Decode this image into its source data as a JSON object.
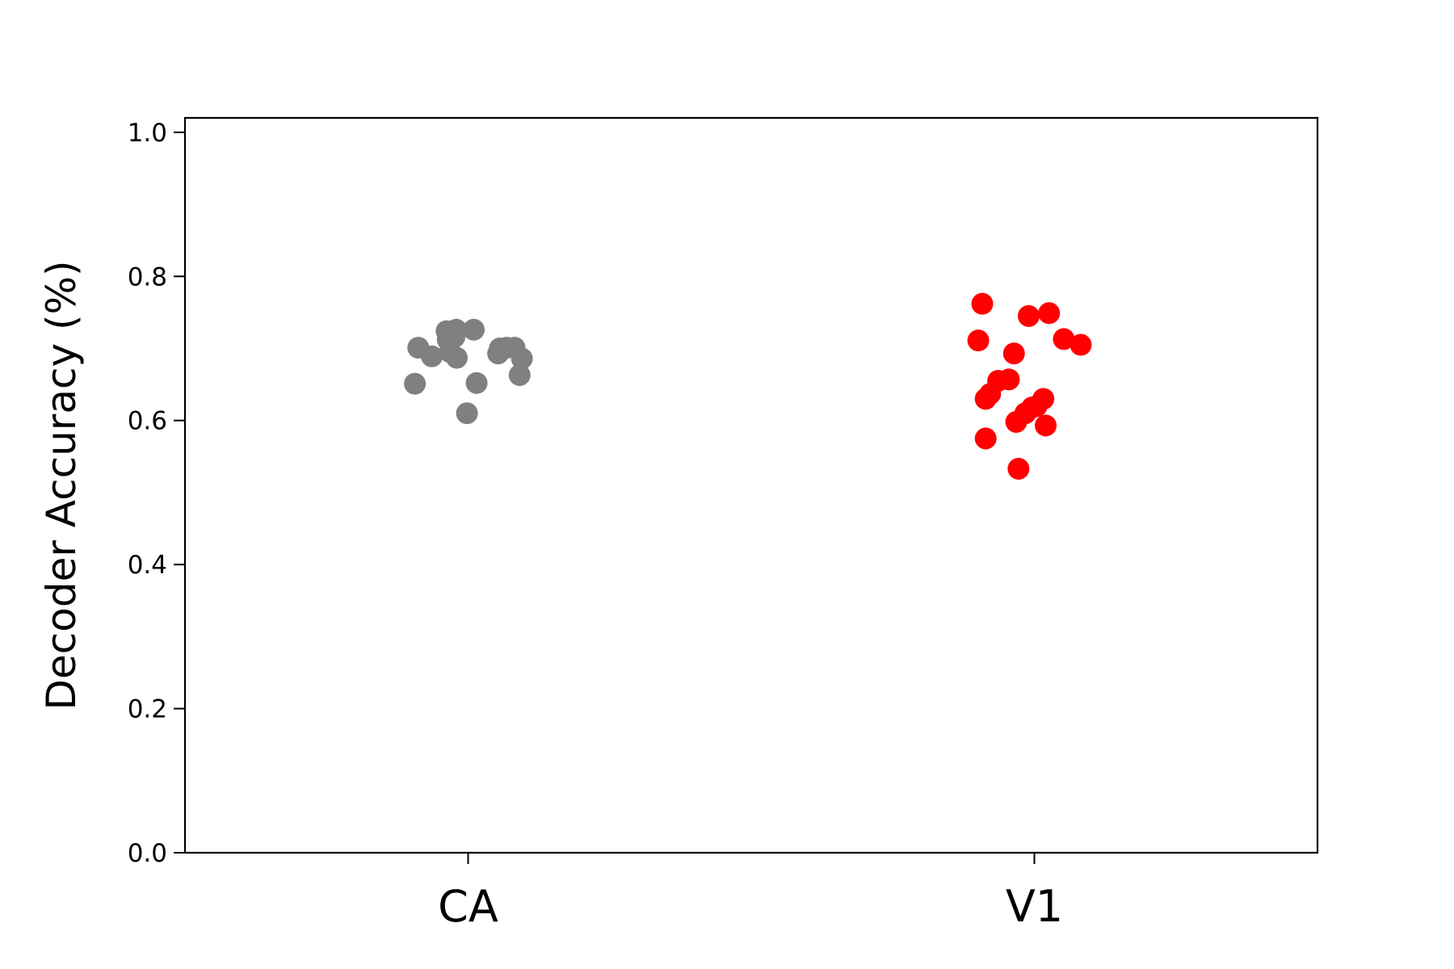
{
  "chart_data": {
    "type": "scatter",
    "title": "",
    "xlabel": "",
    "ylabel": "Decoder Accuracy (%)",
    "categories": [
      "CA",
      "V1"
    ],
    "ylim": [
      0,
      1.02
    ],
    "xlim": [
      -0.5,
      1.5
    ],
    "yticks": [
      0.0,
      0.2,
      0.4,
      0.6,
      0.8,
      1.0
    ],
    "ytick_labels": [
      "0.0",
      "0.2",
      "0.4",
      "0.6",
      "0.8",
      "1.0"
    ],
    "grid": false,
    "legend": "none",
    "series": [
      {
        "category": "CA",
        "color": "#808080",
        "points": [
          {
            "x": -0.094,
            "y": 0.651
          },
          {
            "x": -0.088,
            "y": 0.701
          },
          {
            "x": -0.064,
            "y": 0.689
          },
          {
            "x": -0.038,
            "y": 0.724
          },
          {
            "x": -0.036,
            "y": 0.712
          },
          {
            "x": -0.032,
            "y": 0.695
          },
          {
            "x": -0.024,
            "y": 0.716
          },
          {
            "x": -0.021,
            "y": 0.726
          },
          {
            "x": -0.02,
            "y": 0.687
          },
          {
            "x": -0.002,
            "y": 0.61
          },
          {
            "x": 0.01,
            "y": 0.726
          },
          {
            "x": 0.015,
            "y": 0.652
          },
          {
            "x": 0.053,
            "y": 0.693
          },
          {
            "x": 0.056,
            "y": 0.7
          },
          {
            "x": 0.068,
            "y": 0.701
          },
          {
            "x": 0.082,
            "y": 0.701
          },
          {
            "x": 0.095,
            "y": 0.686
          },
          {
            "x": 0.091,
            "y": 0.663
          }
        ]
      },
      {
        "category": "V1",
        "color": "#ff0000",
        "points": [
          {
            "x": 0.908,
            "y": 0.762
          },
          {
            "x": 0.901,
            "y": 0.711
          },
          {
            "x": 0.914,
            "y": 0.575
          },
          {
            "x": 0.914,
            "y": 0.63
          },
          {
            "x": 0.922,
            "y": 0.637
          },
          {
            "x": 0.936,
            "y": 0.655
          },
          {
            "x": 0.955,
            "y": 0.657
          },
          {
            "x": 0.964,
            "y": 0.693
          },
          {
            "x": 0.968,
            "y": 0.598
          },
          {
            "x": 0.972,
            "y": 0.533
          },
          {
            "x": 0.984,
            "y": 0.61
          },
          {
            "x": 0.99,
            "y": 0.745
          },
          {
            "x": 0.996,
            "y": 0.618
          },
          {
            "x": 1.004,
            "y": 0.62
          },
          {
            "x": 1.016,
            "y": 0.63
          },
          {
            "x": 1.02,
            "y": 0.593
          },
          {
            "x": 1.026,
            "y": 0.749
          },
          {
            "x": 1.052,
            "y": 0.713
          },
          {
            "x": 1.082,
            "y": 0.705
          }
        ]
      }
    ]
  }
}
